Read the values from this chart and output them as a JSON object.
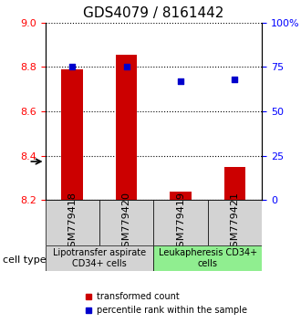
{
  "title": "GDS4079 / 8161442",
  "samples": [
    "GSM779418",
    "GSM779420",
    "GSM779419",
    "GSM779421"
  ],
  "transformed_counts": [
    8.79,
    8.855,
    8.24,
    8.35
  ],
  "percentile_ranks": [
    75,
    75,
    67,
    68
  ],
  "ylim_left": [
    8.2,
    9.0
  ],
  "ylim_right": [
    0,
    100
  ],
  "yticks_left": [
    8.2,
    8.4,
    8.6,
    8.8,
    9.0
  ],
  "yticks_right": [
    0,
    25,
    50,
    75,
    100
  ],
  "ytick_labels_right": [
    "0",
    "25",
    "50",
    "75",
    "100%"
  ],
  "bar_color": "#cc0000",
  "marker_color": "#0000cc",
  "bar_width": 0.4,
  "groups": [
    {
      "label": "Lipotransfer aspirate\nCD34+ cells",
      "indices": [
        0,
        1
      ],
      "bg_color": "#d3d3d3"
    },
    {
      "label": "Leukapheresis CD34+\ncells",
      "indices": [
        2,
        3
      ],
      "bg_color": "#90ee90"
    }
  ],
  "cell_type_label": "cell type",
  "legend_bar_label": "transformed count",
  "legend_marker_label": "percentile rank within the sample",
  "title_fontsize": 11,
  "tick_fontsize": 8,
  "label_fontsize": 8,
  "group_label_fontsize": 7
}
